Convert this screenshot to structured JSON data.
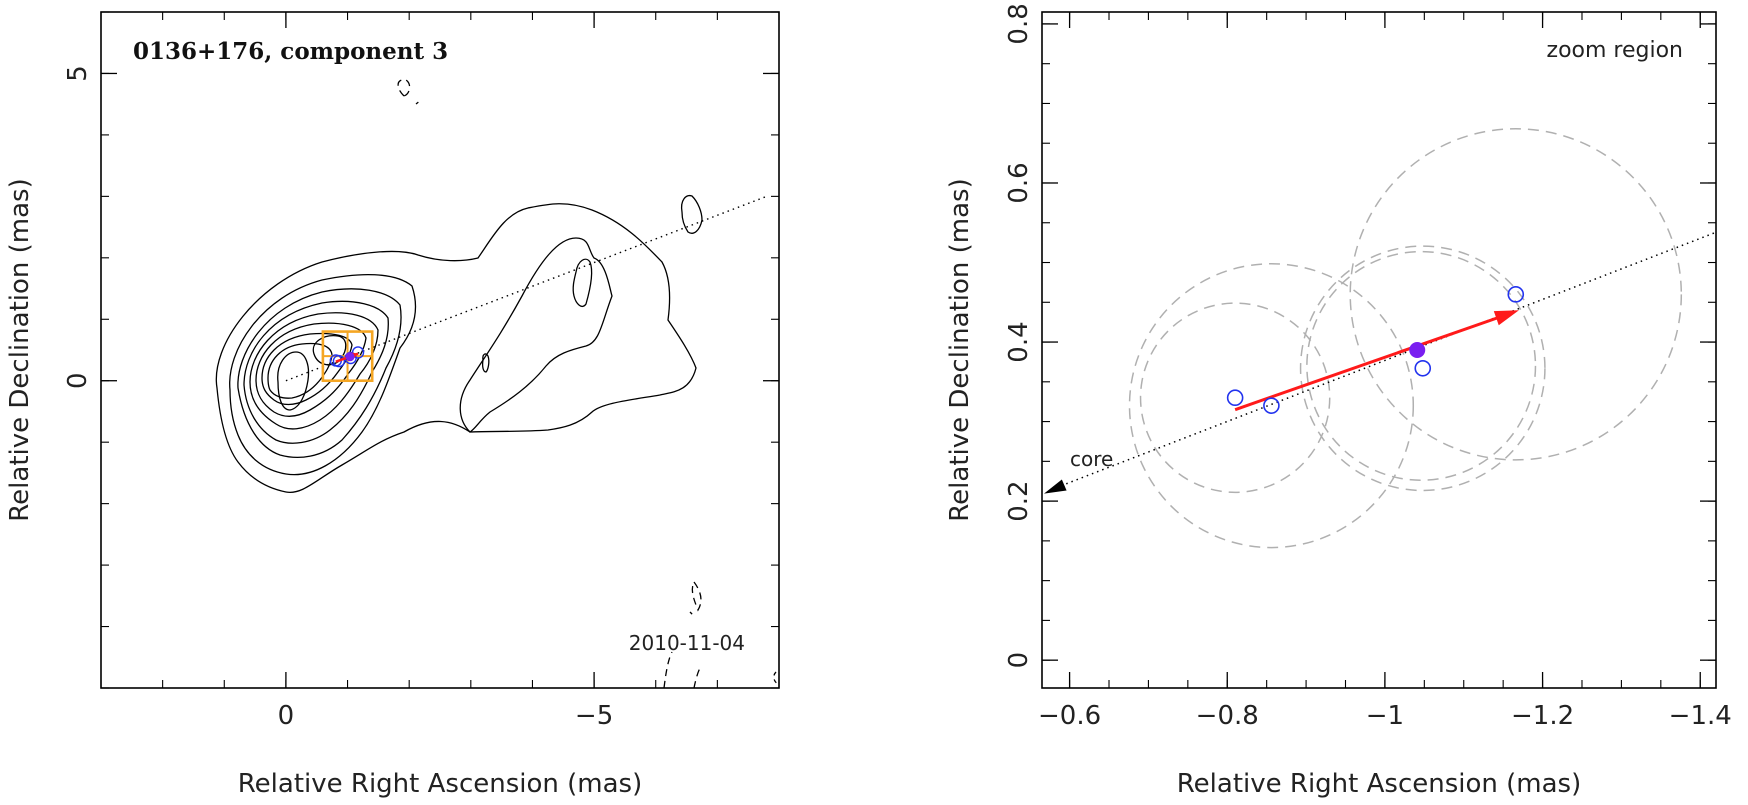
{
  "colors": {
    "contour": "#000000",
    "box": "#f5a623",
    "vector": "#ff1a1a",
    "component": "#2233ee",
    "mean_point": "#7a1ff0",
    "circle": "#b0b0b0"
  },
  "chart_data": [
    {
      "type": "contour-map",
      "title": "0136+176, component 3",
      "epoch": "2010-11-04",
      "xlabel": "Relative Right Ascension (mas)",
      "ylabel": "Relative Declination (mas)",
      "xlim": [
        3,
        -8
      ],
      "ylim": [
        -5,
        6
      ],
      "xticks": [
        0,
        -5
      ],
      "yticks": [
        5,
        0
      ],
      "xtick_labels": [
        "0",
        "−5"
      ],
      "ytick_labels": [
        "5",
        "0"
      ],
      "jet_axis": [
        [
          0,
          0
        ],
        [
          -7.8,
          3
        ]
      ],
      "zoom_box": {
        "x": [
          -0.6,
          -1.4
        ],
        "y": [
          0,
          0.8
        ]
      },
      "components": [
        [
          -0.81,
          0.33
        ],
        [
          -0.86,
          0.32
        ],
        [
          -1.05,
          0.37
        ],
        [
          -1.17,
          0.46
        ]
      ],
      "mean_position": [
        -1.04,
        0.39
      ],
      "motion_vector": [
        [
          -0.81,
          0.31
        ],
        [
          -1.17,
          0.44
        ]
      ]
    },
    {
      "type": "scatter",
      "title": "zoom region",
      "core_label": "core",
      "xlabel": "Relative Right Ascension (mas)",
      "ylabel": "Relative Declination (mas)",
      "xlim": [
        -0.565,
        -1.42
      ],
      "ylim": [
        -0.035,
        0.815
      ],
      "xticks": [
        -0.6,
        -0.8,
        -1,
        -1.2,
        -1.4
      ],
      "yticks": [
        0,
        0.2,
        0.4,
        0.6,
        0.8
      ],
      "xtick_labels": [
        "−0.6",
        "−0.8",
        "−1",
        "−1.2",
        "−1.4"
      ],
      "ytick_labels": [
        "0",
        "0.2",
        "0.4",
        "0.6",
        "0.8"
      ],
      "components": [
        [
          -0.81,
          0.33
        ],
        [
          -0.856,
          0.32
        ],
        [
          -1.048,
          0.367
        ],
        [
          -1.166,
          0.46
        ]
      ],
      "mean_position": [
        -1.041,
        0.39
      ],
      "motion_vector": [
        [
          -0.81,
          0.315
        ],
        [
          -1.17,
          0.44
        ]
      ],
      "jet_axis": [
        [
          -0.565,
          0.21
        ],
        [
          -1.42,
          0.538
        ]
      ],
      "circles": [
        {
          "cx": -0.81,
          "cy": 0.33,
          "r": 0.12
        },
        {
          "cx": -0.856,
          "cy": 0.32,
          "r": 0.18
        },
        {
          "cx": -1.048,
          "cy": 0.367,
          "r": 0.155
        },
        {
          "cx": -1.046,
          "cy": 0.37,
          "r": 0.145
        },
        {
          "cx": -1.166,
          "cy": 0.46,
          "r": 0.21
        }
      ]
    }
  ]
}
